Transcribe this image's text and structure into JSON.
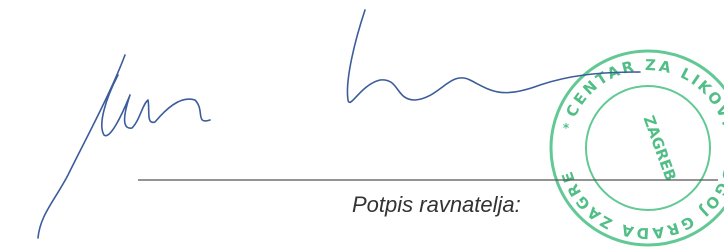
{
  "signature_label": "Potpis ravnatelja:",
  "stamp": {
    "outer_text": "CENTAR ZA LIKOVNI ODGOJ GRADA ZAGREBA",
    "inner_text": "ZAGREB"
  }
}
